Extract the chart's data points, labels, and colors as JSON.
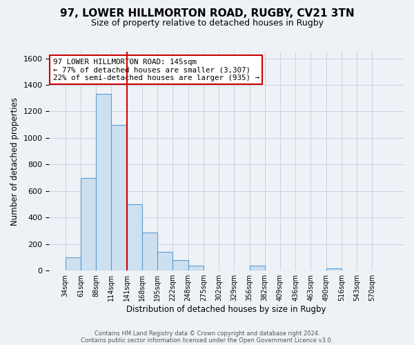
{
  "title": "97, LOWER HILLMORTON ROAD, RUGBY, CV21 3TN",
  "subtitle": "Size of property relative to detached houses in Rugby",
  "xlabel": "Distribution of detached houses by size in Rugby",
  "ylabel": "Number of detached properties",
  "bin_labels": [
    "34sqm",
    "61sqm",
    "88sqm",
    "114sqm",
    "141sqm",
    "168sqm",
    "195sqm",
    "222sqm",
    "248sqm",
    "275sqm",
    "302sqm",
    "329sqm",
    "356sqm",
    "382sqm",
    "409sqm",
    "436sqm",
    "463sqm",
    "490sqm",
    "516sqm",
    "543sqm",
    "570sqm"
  ],
  "bin_values": [
    100,
    700,
    1330,
    1100,
    500,
    285,
    140,
    80,
    35,
    0,
    0,
    0,
    35,
    0,
    0,
    0,
    0,
    18,
    0,
    0,
    0
  ],
  "bar_color": "#cce0f0",
  "bar_edge_color": "#5b9bd5",
  "red_line_index": 4,
  "property_label": "97 LOWER HILLMORTON ROAD: 145sqm",
  "annotation_line1": "← 77% of detached houses are smaller (3,307)",
  "annotation_line2": "22% of semi-detached houses are larger (935) →",
  "annotation_box_color": "#ffffff",
  "annotation_box_edge": "#cc0000",
  "ylim": [
    0,
    1650
  ],
  "yticks": [
    0,
    200,
    400,
    600,
    800,
    1000,
    1200,
    1400,
    1600
  ],
  "footer1": "Contains HM Land Registry data © Crown copyright and database right 2024.",
  "footer2": "Contains public sector information licensed under the Open Government Licence v3.0.",
  "background_color": "#eef2f7",
  "grid_color": "#c8d0dc",
  "title_fontsize": 11,
  "subtitle_fontsize": 9
}
